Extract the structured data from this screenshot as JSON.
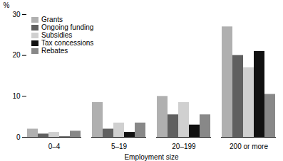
{
  "chart_data": {
    "type": "bar",
    "categories": [
      "0–4",
      "5–19",
      "20–199",
      "200 or more"
    ],
    "series": [
      {
        "name": "Grants",
        "color": "#b0b0b0",
        "values": [
          2.0,
          8.5,
          10.0,
          27.0
        ]
      },
      {
        "name": "Ongoing funding",
        "color": "#606060",
        "values": [
          0.8,
          2.0,
          5.5,
          20.0
        ]
      },
      {
        "name": "Subsidies",
        "color": "#d0d0d0",
        "values": [
          1.2,
          3.5,
          8.5,
          17.0
        ]
      },
      {
        "name": "Tax concessions",
        "color": "#111111",
        "values": [
          0.1,
          1.2,
          3.0,
          21.0
        ]
      },
      {
        "name": "Rebates",
        "color": "#888888",
        "values": [
          1.5,
          3.5,
          5.5,
          10.5
        ]
      }
    ],
    "xlabel": "Employment size",
    "ylabel": "%",
    "ylim": [
      0,
      30
    ],
    "yticks": [
      0,
      10,
      20,
      30
    ],
    "grid": false,
    "legend": "upper left"
  }
}
